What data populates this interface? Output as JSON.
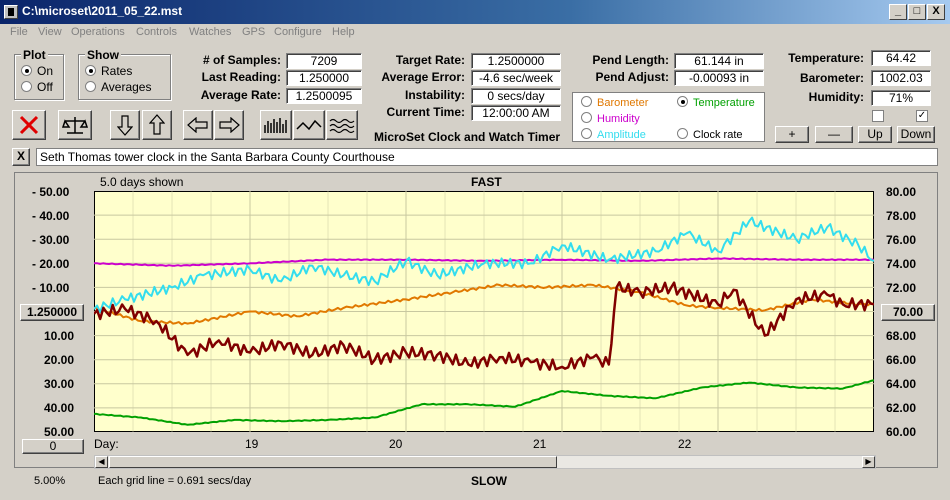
{
  "window": {
    "title": "C:\\microset\\2011_05_22.mst",
    "minimize": "_",
    "maximize": "□",
    "close": "X"
  },
  "menu": [
    "File",
    "View",
    "Operations",
    "Controls",
    "Watches",
    "GPS",
    "Configure",
    "Help"
  ],
  "plot_group": {
    "title": "Plot",
    "on": "On",
    "off": "Off",
    "selected": "On"
  },
  "show_group": {
    "title": "Show",
    "rates": "Rates",
    "averages": "Averages",
    "selected": "Rates"
  },
  "stats": {
    "samples_label": "# of Samples:",
    "samples_value": "7209",
    "last_reading_label": "Last Reading:",
    "last_reading_value": "1.250000",
    "average_rate_label": "Average Rate:",
    "average_rate_value": "1.2500095",
    "target_rate_label": "Target Rate:",
    "target_rate_value": "1.2500000",
    "average_error_label": "Average Error:",
    "average_error_value": "-4.6 sec/week",
    "instability_label": "Instability:",
    "instability_value": "0 secs/day",
    "current_time_label": "Current Time:",
    "current_time_value": "12:00:00 AM",
    "pend_length_label": "Pend Length:",
    "pend_length_value": "61.144 in",
    "pend_adjust_label": "Pend Adjust:",
    "pend_adjust_value": "-0.00093 in",
    "temperature_label": "Temperature:",
    "temperature_value": "64.42",
    "barometer_label": "Barometer:",
    "barometer_value": "1002.03",
    "humidity_label": "Humidity:",
    "humidity_value": "71%"
  },
  "app_name": "MicroSet Clock and Watch Timer",
  "series_select": {
    "barometer": "Barometer",
    "temperature": "Temperature",
    "humidity": "Humidity",
    "amplitude": "Amplitude",
    "clock_rate": "Clock rate",
    "selected": "Temperature"
  },
  "adjust_buttons": {
    "plus": "+",
    "minus": "—",
    "up": "Up",
    "down": "Down"
  },
  "checkboxes": [
    {
      "checked": false
    },
    {
      "checked": true
    }
  ],
  "description": "Seth Thomas tower clock in the Santa Barbara County Courthouse",
  "clear_desc": "X",
  "chart_header": {
    "days_shown": "5.0 days shown",
    "fast": "FAST",
    "slow": "SLOW"
  },
  "left_axis": [
    "- 50.00",
    "- 40.00",
    "- 30.00",
    "- 20.00",
    "- 10.00",
    "10.00",
    "20.00",
    "30.00",
    "40.00",
    "50.00"
  ],
  "center_value": "1.250000",
  "right_axis": [
    "80.00",
    "78.00",
    "76.00",
    "74.00",
    "72.00",
    "70.00",
    "68.00",
    "66.00",
    "64.00",
    "62.00",
    "60.00"
  ],
  "right_center_value": "70.00",
  "zero_button": "0",
  "day_axis": {
    "label": "Day:",
    "ticks": [
      "19",
      "20",
      "21",
      "22"
    ]
  },
  "status": {
    "percent": "5.00%",
    "grid": "Each grid line = 0.691 secs/day"
  },
  "colors": {
    "plot_bg": "#ffffcc",
    "grid": "#c8c8a0",
    "rate": "#800000",
    "temperature": "#00a000",
    "humidity": "#cc00cc",
    "amplitude": "#33ddee",
    "barometer": "#e07800"
  },
  "chart_data": {
    "type": "line",
    "x_label": "Day",
    "x_range": [
      18.0,
      23.0
    ],
    "y_left_range": [
      -50,
      50
    ],
    "y_right_range": [
      60,
      80
    ],
    "series": [
      {
        "name": "Clock rate",
        "axis": "left",
        "x": [
          18.0,
          18.2,
          18.4,
          18.6,
          18.8,
          19.0,
          19.2,
          19.4,
          19.6,
          19.8,
          20.0,
          20.2,
          20.4,
          20.6,
          20.8,
          21.0,
          21.2,
          21.3,
          21.35,
          21.5,
          21.7,
          22.0,
          22.1,
          22.3,
          22.5,
          22.7,
          22.8,
          23.0
        ],
        "y": [
          1,
          -1,
          4,
          18,
          12,
          17,
          13,
          18,
          14,
          20,
          17,
          18,
          22,
          19,
          21,
          23,
          19,
          22,
          -10,
          -8,
          -10,
          -3,
          -9,
          10,
          -5,
          -7,
          -3,
          -3
        ]
      },
      {
        "name": "Temperature",
        "axis": "right",
        "x": [
          18.0,
          18.3,
          18.6,
          18.9,
          19.2,
          19.5,
          19.8,
          20.1,
          20.4,
          20.7,
          21.0,
          21.3,
          21.6,
          21.9,
          22.2,
          22.5,
          22.8,
          23.0
        ],
        "y": [
          61.5,
          61.2,
          60.6,
          61.0,
          60.9,
          61.0,
          61.2,
          62.3,
          62.3,
          62.1,
          63.4,
          63.0,
          62.8,
          63.7,
          64.1,
          63.7,
          63.6,
          64.3
        ]
      },
      {
        "name": "Humidity",
        "axis": "right",
        "x": [
          18.0,
          18.5,
          19.0,
          19.5,
          20.0,
          20.5,
          21.0,
          21.5,
          22.0,
          22.5,
          23.0
        ],
        "y": [
          74.0,
          73.8,
          74.0,
          74.3,
          74.3,
          74.2,
          74.3,
          74.2,
          74.4,
          74.3,
          74.3
        ]
      },
      {
        "name": "Amplitude",
        "axis": "right",
        "x": [
          18.0,
          18.2,
          18.5,
          18.7,
          19.0,
          19.2,
          19.4,
          19.6,
          19.8,
          20.0,
          20.2,
          20.5,
          20.8,
          21.0,
          21.3,
          21.6,
          21.8,
          22.0,
          22.2,
          22.5,
          22.7,
          22.9,
          23.0
        ],
        "y": [
          70.2,
          71.0,
          72.0,
          73.0,
          73.5,
          72.5,
          73.8,
          73.0,
          72.5,
          74.2,
          73.0,
          74.0,
          74.0,
          75.5,
          74.3,
          75.0,
          76.5,
          75.0,
          77.5,
          76.0,
          77.0,
          75.5,
          74.2
        ]
      },
      {
        "name": "Barometer",
        "axis": "right",
        "x": [
          18.0,
          18.3,
          18.6,
          19.0,
          19.3,
          19.6,
          20.0,
          20.3,
          20.6,
          20.9,
          21.2,
          21.5,
          21.8,
          22.0,
          22.3,
          22.6,
          22.9,
          23.0
        ],
        "y": [
          70.3,
          69.2,
          69.0,
          70.0,
          69.6,
          70.3,
          71.0,
          71.6,
          72.2,
          72.0,
          72.2,
          71.6,
          70.5,
          70.3,
          70.1,
          71.0,
          70.6,
          70.6
        ]
      }
    ]
  }
}
